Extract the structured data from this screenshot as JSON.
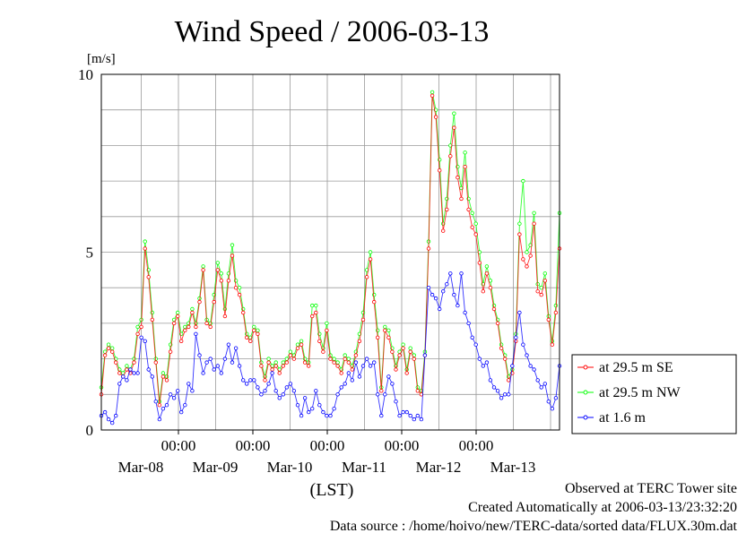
{
  "chart_data": {
    "type": "line",
    "title": "Wind Speed / 2006-03-13",
    "ylabel": "[m/s]",
    "xlabel": "(LST)",
    "ylim": [
      0,
      10
    ],
    "y_ticks": [
      "0",
      "5",
      "10"
    ],
    "x_time_ticks": [
      "00:00",
      "00:00",
      "00:00",
      "00:00",
      "00:00"
    ],
    "x_date_labels": [
      "Mar-08",
      "Mar-09",
      "Mar-10",
      "Mar-11",
      "Mar-12",
      "Mar-13"
    ],
    "grid": true,
    "legend_position": "right",
    "series": [
      {
        "name": "at 29.5 m SE",
        "color": "#ff0000",
        "values": [
          1.0,
          2.1,
          2.3,
          2.2,
          1.9,
          1.6,
          1.5,
          1.7,
          1.6,
          1.9,
          2.7,
          2.9,
          5.1,
          4.3,
          3.1,
          1.9,
          0.7,
          1.5,
          1.4,
          2.2,
          3.0,
          3.2,
          2.5,
          2.8,
          2.9,
          3.3,
          2.9,
          3.6,
          4.5,
          3.0,
          2.9,
          3.6,
          4.5,
          4.2,
          3.2,
          4.2,
          4.9,
          4.0,
          3.8,
          3.3,
          2.6,
          2.5,
          2.8,
          2.7,
          1.8,
          1.4,
          1.9,
          1.7,
          1.8,
          1.6,
          1.8,
          1.9,
          2.1,
          2.0,
          2.3,
          2.4,
          1.9,
          1.8,
          3.2,
          3.3,
          2.5,
          2.2,
          2.8,
          2.0,
          1.9,
          1.8,
          1.6,
          2.0,
          1.9,
          1.7,
          2.1,
          2.5,
          3.1,
          4.3,
          4.8,
          3.6,
          2.6,
          1.1,
          2.8,
          2.6,
          2.2,
          1.7,
          2.1,
          2.3,
          1.6,
          2.2,
          2.0,
          1.1,
          1.0,
          2.1,
          5.1,
          9.4,
          8.8,
          7.3,
          5.6,
          6.2,
          7.7,
          8.5,
          7.1,
          6.5,
          7.4,
          6.2,
          5.7,
          5.5,
          4.7,
          3.9,
          4.4,
          4.0,
          3.4,
          3.0,
          2.3,
          2.0,
          1.4,
          1.6,
          2.5,
          5.5,
          4.8,
          4.6,
          4.9,
          5.8,
          3.9,
          3.8,
          4.2,
          3.1,
          2.4,
          3.3,
          5.1
        ]
      },
      {
        "name": "at 29.5 m NW",
        "color": "#00ff00",
        "values": [
          1.2,
          2.2,
          2.4,
          2.3,
          2.0,
          1.7,
          1.6,
          1.8,
          1.7,
          2.0,
          2.9,
          3.1,
          5.3,
          4.5,
          3.3,
          2.0,
          0.8,
          1.6,
          1.5,
          2.4,
          3.1,
          3.3,
          2.7,
          2.9,
          3.0,
          3.4,
          3.0,
          3.7,
          4.6,
          3.1,
          3.0,
          3.8,
          4.7,
          4.4,
          3.4,
          4.4,
          5.2,
          4.2,
          4.0,
          3.4,
          2.7,
          2.6,
          2.9,
          2.8,
          1.9,
          1.5,
          2.0,
          1.8,
          1.9,
          1.7,
          1.9,
          2.0,
          2.2,
          2.1,
          2.4,
          2.5,
          2.0,
          1.9,
          3.5,
          3.5,
          2.7,
          2.3,
          3.0,
          2.1,
          2.0,
          1.9,
          1.7,
          2.1,
          2.0,
          1.8,
          2.2,
          2.7,
          3.3,
          4.5,
          5.0,
          3.8,
          2.8,
          1.2,
          2.9,
          2.8,
          2.3,
          1.8,
          2.2,
          2.4,
          1.7,
          2.3,
          2.1,
          1.2,
          1.1,
          2.2,
          5.3,
          9.5,
          9.0,
          7.6,
          5.8,
          6.5,
          8.0,
          8.9,
          7.4,
          6.8,
          7.8,
          6.5,
          6.1,
          5.8,
          5.0,
          4.1,
          4.6,
          4.2,
          3.5,
          3.1,
          2.4,
          2.1,
          1.5,
          1.7,
          2.7,
          5.8,
          7.0,
          5.0,
          5.2,
          6.1,
          4.1,
          4.0,
          4.4,
          3.2,
          2.5,
          3.5,
          6.1
        ]
      },
      {
        "name": "at 1.6 m",
        "color": "#0000ff",
        "values": [
          0.4,
          0.5,
          0.3,
          0.2,
          0.4,
          1.3,
          1.5,
          1.4,
          1.7,
          1.6,
          1.6,
          2.6,
          2.5,
          1.7,
          1.5,
          0.8,
          0.3,
          0.6,
          0.7,
          1.0,
          0.9,
          1.1,
          0.5,
          0.7,
          1.3,
          1.1,
          2.7,
          2.1,
          1.6,
          1.9,
          2.0,
          1.7,
          1.8,
          1.6,
          2.0,
          2.4,
          1.9,
          2.3,
          1.8,
          1.4,
          1.3,
          1.4,
          1.4,
          1.2,
          1.0,
          1.1,
          1.3,
          1.6,
          1.1,
          0.9,
          1.0,
          1.2,
          1.3,
          1.1,
          0.7,
          0.4,
          0.9,
          0.5,
          0.6,
          1.1,
          0.7,
          0.5,
          0.4,
          0.4,
          0.6,
          1.0,
          1.2,
          1.3,
          1.6,
          1.4,
          1.9,
          1.5,
          1.8,
          2.0,
          1.8,
          1.9,
          1.0,
          0.4,
          1.0,
          1.5,
          1.3,
          0.8,
          0.4,
          0.5,
          0.5,
          0.4,
          0.3,
          0.4,
          0.3,
          2.1,
          4.0,
          3.8,
          3.7,
          3.4,
          3.9,
          4.1,
          4.4,
          3.8,
          3.5,
          4.4,
          3.3,
          3.0,
          2.6,
          2.4,
          2.0,
          1.8,
          1.9,
          1.4,
          1.2,
          1.1,
          0.9,
          1.0,
          1.0,
          1.8,
          2.6,
          3.3,
          2.4,
          2.1,
          1.8,
          1.7,
          1.4,
          1.2,
          1.3,
          0.8,
          0.6,
          0.9,
          1.8
        ]
      }
    ]
  },
  "footer": {
    "line1": "Observed at TERC Tower site",
    "line2": "Created Automatically at 2006-03-13/23:32:20",
    "line3": "Data source : /home/hoivo/new/TERC-data/sorted  data/FLUX.30m.dat"
  }
}
